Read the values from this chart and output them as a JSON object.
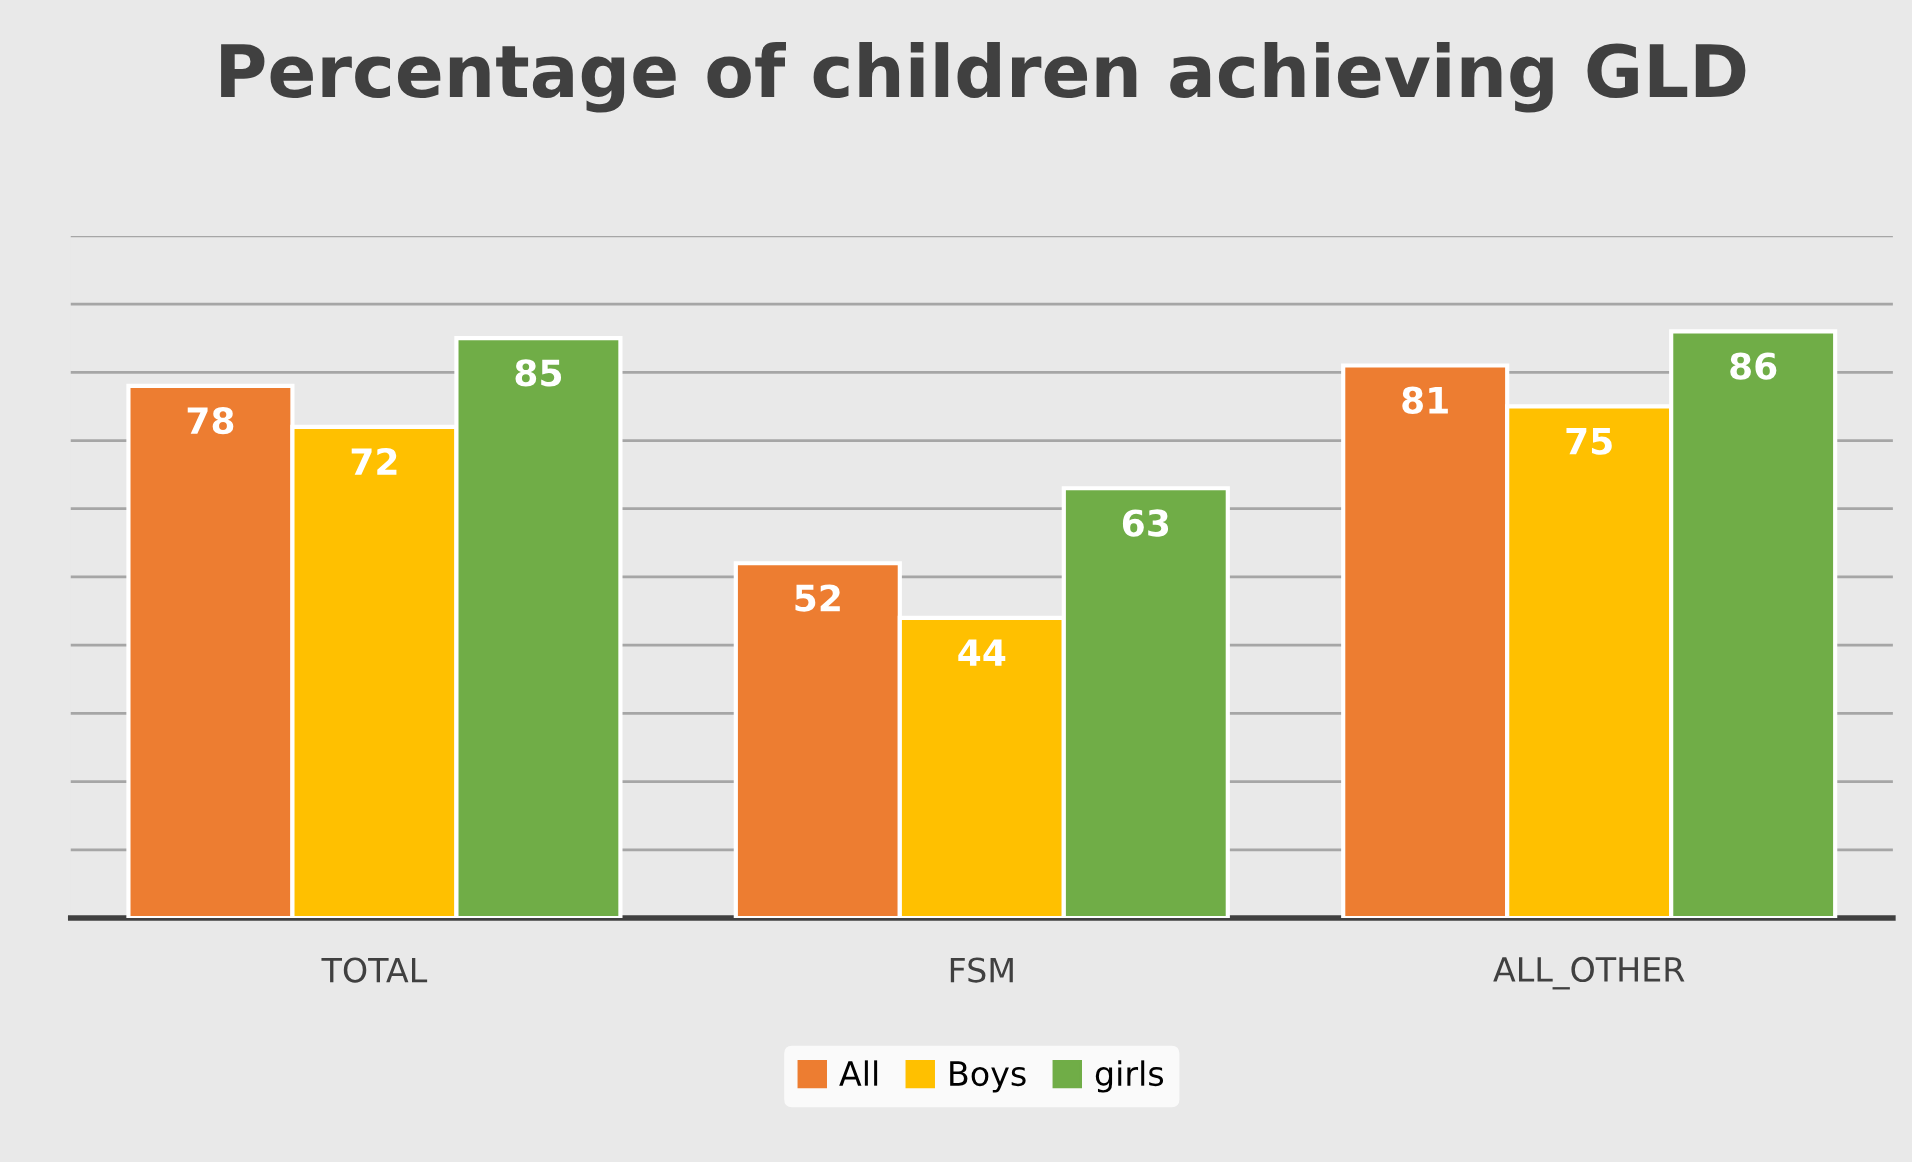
{
  "chart_data": {
    "type": "bar",
    "title": "Percentage of children achieving GLD",
    "categories": [
      "TOTAL",
      "FSM",
      "ALL_OTHER"
    ],
    "series": [
      {
        "name": "All",
        "color": "#ed7d31",
        "values": [
          78,
          52,
          81
        ]
      },
      {
        "name": "Boys",
        "color": "#ffc000",
        "values": [
          72,
          44,
          75
        ]
      },
      {
        "name": "girls",
        "color": "#70ad47",
        "values": [
          85,
          63,
          86
        ]
      }
    ],
    "ylim": [
      0,
      100
    ],
    "yticks": [
      {
        "value": 0,
        "label": null
      },
      {
        "value": 10,
        "label": null
      },
      {
        "value": 20,
        "label": null
      },
      {
        "value": 30,
        "label": null
      },
      {
        "value": 40,
        "label": null
      },
      {
        "value": 50,
        "label": null
      },
      {
        "value": 60,
        "label": null
      },
      {
        "value": 70,
        "label": null
      },
      {
        "value": 80,
        "label": null
      },
      {
        "value": 90,
        "label": null
      },
      {
        "value": 100,
        "label": null
      }
    ],
    "tick_labels": "x",
    "grid": "y",
    "legend": "bottom",
    "data_labels": true
  }
}
